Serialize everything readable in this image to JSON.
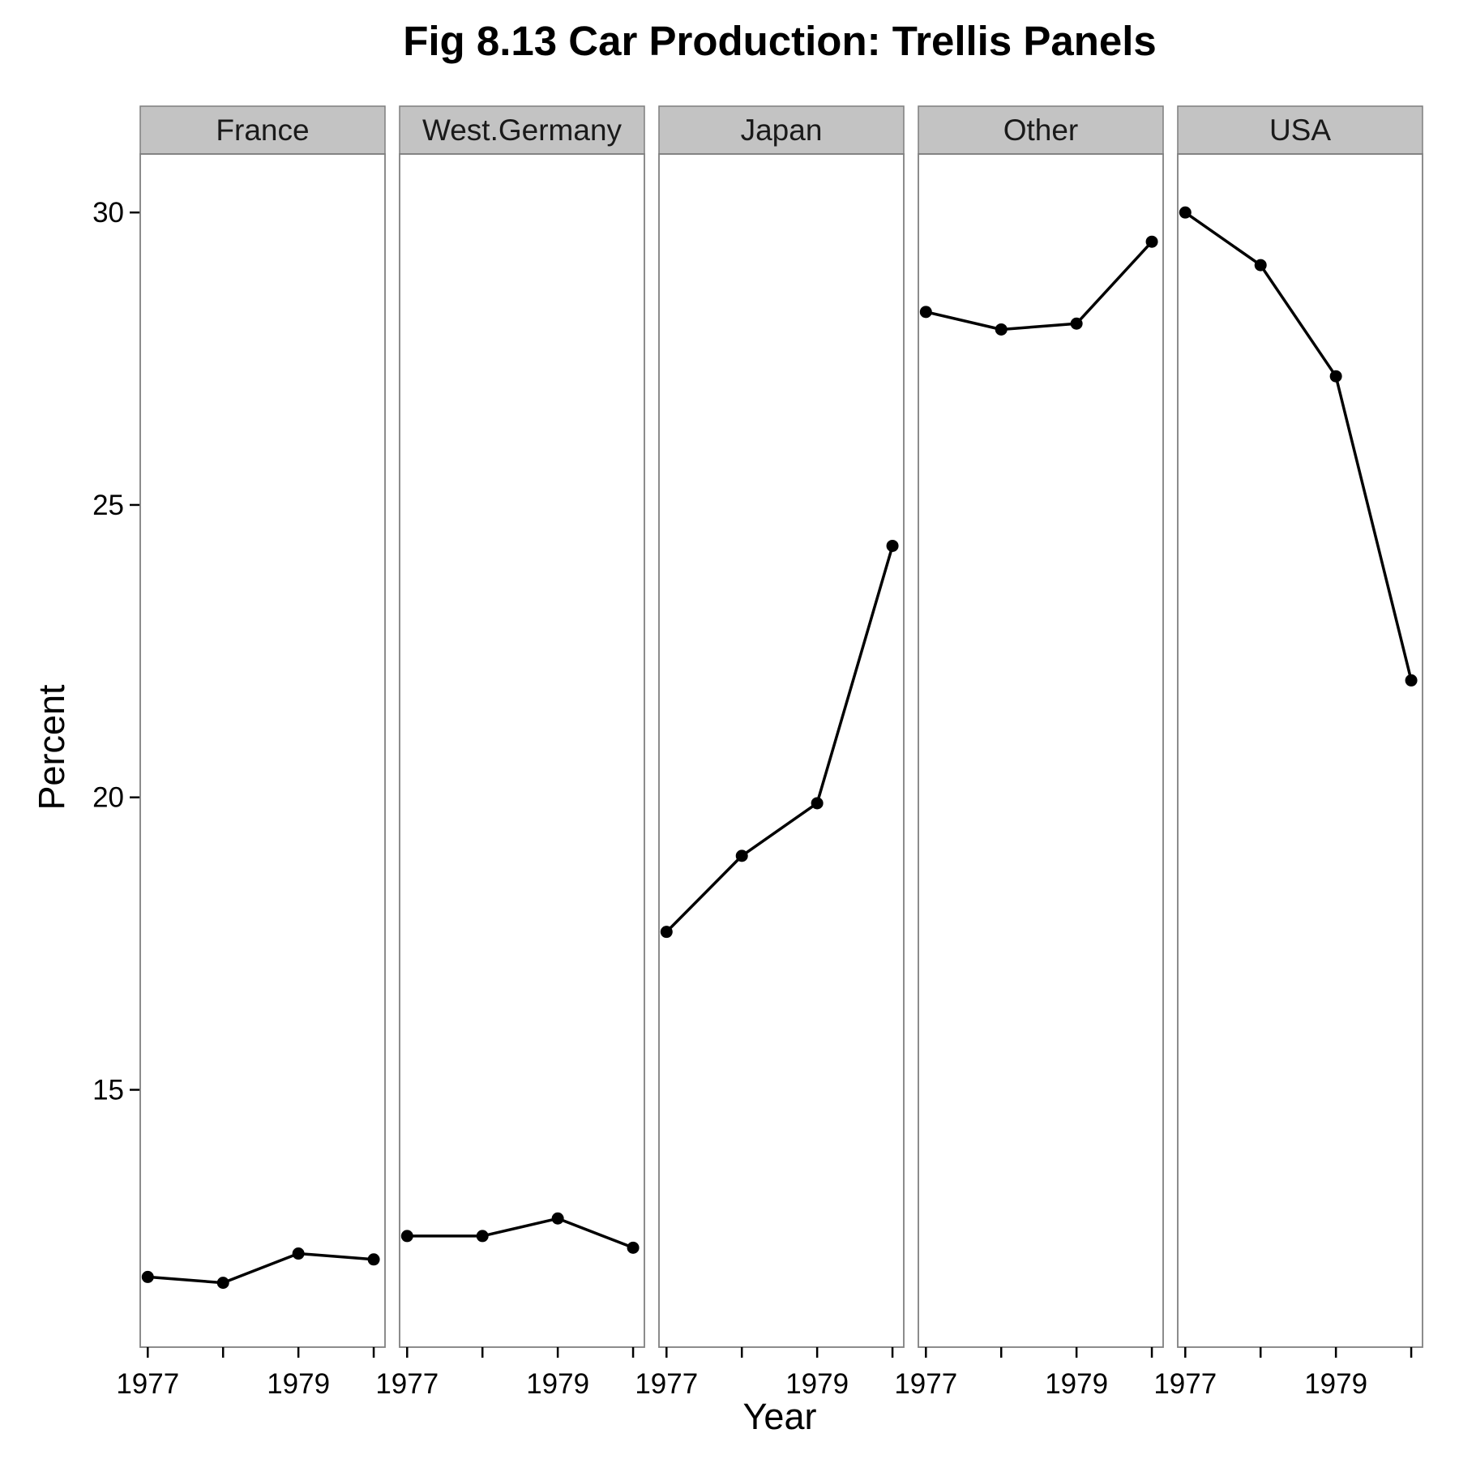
{
  "chart_data": {
    "type": "line",
    "title": "Fig 8.13 Car Production: Trellis Panels",
    "xlabel": "Year",
    "ylabel": "Percent",
    "x": [
      1977,
      1978,
      1979,
      1980
    ],
    "x_tick_values": [
      1977,
      1978,
      1979,
      1980
    ],
    "x_tick_labels": [
      "1977",
      "",
      "1979",
      ""
    ],
    "xlim": [
      1976.9,
      1980.15
    ],
    "y_ticks": [
      15,
      20,
      25,
      30
    ],
    "ylim": [
      10.6,
      31.0
    ],
    "grid": false,
    "legend": "none",
    "facets": [
      {
        "name": "France",
        "values": [
          11.8,
          11.7,
          12.2,
          12.1
        ]
      },
      {
        "name": "West.Germany",
        "values": [
          12.5,
          12.5,
          12.8,
          12.3
        ]
      },
      {
        "name": "Japan",
        "values": [
          17.7,
          19.0,
          19.9,
          24.3
        ]
      },
      {
        "name": "Other",
        "values": [
          28.3,
          28.0,
          28.1,
          29.5
        ]
      },
      {
        "name": "USA",
        "values": [
          30.0,
          29.1,
          27.2,
          22.0
        ]
      }
    ]
  },
  "colors": {
    "line": "#000000",
    "point": "#000000",
    "panel_border": "#7f7f7f",
    "strip_fill": "#c3c3c3",
    "strip_border": "#7f7f7f"
  }
}
